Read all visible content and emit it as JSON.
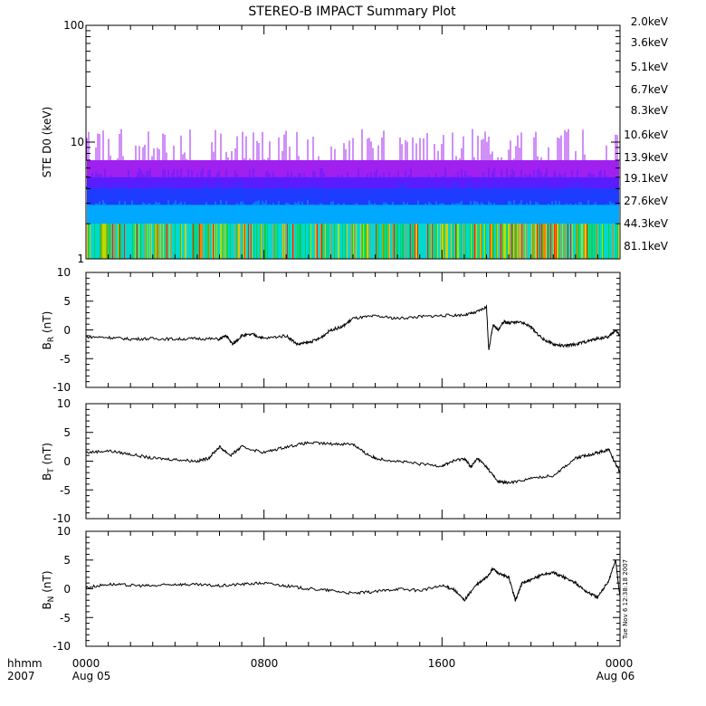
{
  "title": "STEREO-B IMPACT Summary Plot",
  "timestamp": "Tue Nov  6 12:38:18 2007",
  "x_axis": {
    "row1_label": "hhmm",
    "row2_label": "2007",
    "ticks": [
      {
        "hours": 0,
        "time": "0000",
        "date": "Aug 05"
      },
      {
        "hours": 8,
        "time": "0800",
        "date": ""
      },
      {
        "hours": 16,
        "time": "1600",
        "date": ""
      },
      {
        "hours": 24,
        "time": "0000",
        "date": "Aug 06"
      }
    ]
  },
  "legend": [
    {
      "label": "2.0keV",
      "color": "#a020f0"
    },
    {
      "label": "3.6keV",
      "color": "#5a1cff"
    },
    {
      "label": "5.1keV",
      "color": "#1e3cff"
    },
    {
      "label": "6.7keV",
      "color": "#00a8ff"
    },
    {
      "label": "8.3keV",
      "color": "#00d8d0"
    },
    {
      "label": "10.6keV",
      "color": "#00d060"
    },
    {
      "label": "13.9keV",
      "color": "#20d020"
    },
    {
      "label": "19.1keV",
      "color": "#b0e000"
    },
    {
      "label": "27.6keV",
      "color": "#f0c000"
    },
    {
      "label": "44.3keV",
      "color": "#ff8000"
    },
    {
      "label": "81.1keV",
      "color": "#ff2000"
    }
  ],
  "chart_data": [
    {
      "type": "line",
      "title": "STEREO-B IMPACT Summary Plot",
      "ylabel": "STE D0 (keV)",
      "yscale": "log",
      "ylim": [
        1,
        100
      ],
      "y_ticks": [
        "1",
        "10",
        "100"
      ],
      "xlim_hours": [
        0,
        24
      ],
      "series_note": "dense energy-channel traces, approximate",
      "bands": [
        {
          "channel": "2.0keV",
          "level": 7.0,
          "peak": 13.0
        },
        {
          "channel": "3.6keV",
          "level": 5.0,
          "peak": 6.0
        },
        {
          "channel": "5.1keV",
          "level": 4.0,
          "peak": 4.5
        },
        {
          "channel": "6.7keV",
          "level": 2.9,
          "peak": 3.2
        },
        {
          "channel": "8.3keV",
          "level": 2.0,
          "peak": 2.0
        },
        {
          "channel": "13.9keV",
          "level": 1.0,
          "peak": 1.0
        }
      ]
    },
    {
      "type": "line",
      "ylabel": "B_R (nT)",
      "ylim": [
        -10,
        10
      ],
      "y_ticks": [
        "10",
        "5",
        "0",
        "-5",
        "-10"
      ],
      "x_hours": [
        0,
        1,
        2,
        3,
        4,
        5,
        6,
        6.3,
        6.6,
        7,
        7.5,
        8,
        9,
        9.5,
        10,
        10.5,
        11,
        11.5,
        12,
        13,
        14,
        15,
        16,
        17,
        17.5,
        18,
        18.1,
        18.3,
        18.5,
        18.8,
        19,
        19.5,
        20,
        20.5,
        21,
        21.5,
        22,
        22.5,
        23,
        23.5,
        23.8,
        24
      ],
      "values": [
        -1.2,
        -1.3,
        -1.6,
        -1.5,
        -1.6,
        -1.5,
        -1.6,
        -1.0,
        -2.5,
        -1.0,
        -0.8,
        -1.5,
        -1.0,
        -2.5,
        -2.2,
        -1.5,
        0.0,
        0.5,
        2.0,
        2.4,
        2.0,
        2.3,
        2.5,
        2.6,
        3.0,
        4.0,
        -3.5,
        1.0,
        0.0,
        1.5,
        1.2,
        1.5,
        0.5,
        -1.5,
        -2.5,
        -2.8,
        -2.5,
        -2.0,
        -1.5,
        -1.2,
        0.0,
        -1.0
      ]
    },
    {
      "type": "line",
      "ylabel": "B_T (nT)",
      "ylim": [
        -10,
        10
      ],
      "y_ticks": [
        "10",
        "5",
        "0",
        "-5",
        "-10"
      ],
      "x_hours": [
        0,
        1,
        2,
        3,
        4,
        5,
        5.5,
        6,
        6.5,
        7,
        8,
        9,
        10,
        11,
        12,
        12.5,
        13,
        14,
        15,
        16,
        16.5,
        17,
        17.3,
        17.6,
        18,
        18.5,
        19,
        20,
        21,
        22,
        22.5,
        23,
        23.5,
        24
      ],
      "values": [
        1.5,
        1.8,
        1.2,
        0.5,
        0.3,
        0.0,
        0.5,
        2.5,
        1.0,
        2.5,
        1.5,
        2.5,
        3.2,
        3.0,
        3.0,
        1.5,
        0.5,
        0.0,
        -0.5,
        -0.8,
        0.0,
        0.5,
        -1.0,
        0.5,
        -1.0,
        -3.5,
        -3.8,
        -3.0,
        -2.5,
        0.5,
        1.0,
        1.5,
        2.0,
        -2.0
      ]
    },
    {
      "type": "line",
      "ylabel": "B_N (nT)",
      "ylim": [
        -10,
        10
      ],
      "y_ticks": [
        "10",
        "5",
        "0",
        "-5",
        "-10"
      ],
      "x_hours": [
        0,
        1,
        2,
        3,
        4,
        5,
        6,
        7,
        8,
        9,
        10,
        11,
        12,
        13,
        14,
        15,
        16,
        16.5,
        17,
        17.5,
        18,
        18.3,
        18.6,
        19,
        19.3,
        19.6,
        20,
        20.5,
        21,
        21.5,
        22,
        22.5,
        23,
        23.5,
        23.8,
        24
      ],
      "values": [
        0.2,
        0.8,
        0.6,
        0.5,
        0.8,
        0.7,
        0.5,
        0.8,
        1.0,
        0.5,
        0.0,
        -0.3,
        -0.8,
        -0.5,
        0.0,
        -0.3,
        0.5,
        0.0,
        -2.0,
        0.5,
        2.0,
        3.5,
        2.5,
        2.0,
        -2.0,
        1.0,
        1.5,
        2.5,
        2.8,
        2.0,
        1.0,
        -0.5,
        -1.5,
        1.5,
        5.0,
        -1.5
      ]
    }
  ]
}
